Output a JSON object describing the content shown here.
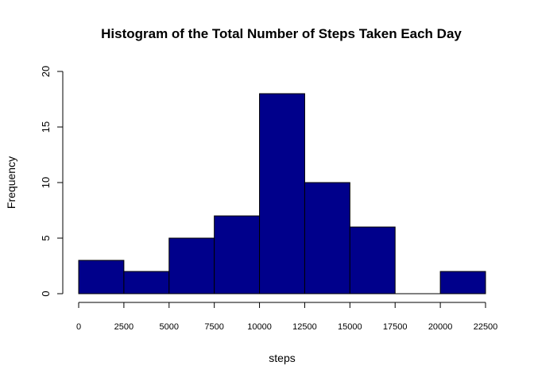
{
  "chart_data": {
    "type": "bar",
    "title": "Histogram of the Total Number of Steps Taken Each Day",
    "xlabel": "steps",
    "ylabel": "Frequency",
    "bins": [
      {
        "start": 0,
        "end": 2500,
        "count": 3
      },
      {
        "start": 2500,
        "end": 5000,
        "count": 2
      },
      {
        "start": 5000,
        "end": 7500,
        "count": 5
      },
      {
        "start": 7500,
        "end": 10000,
        "count": 7
      },
      {
        "start": 10000,
        "end": 12500,
        "count": 18
      },
      {
        "start": 12500,
        "end": 15000,
        "count": 10
      },
      {
        "start": 15000,
        "end": 17500,
        "count": 6
      },
      {
        "start": 17500,
        "end": 20000,
        "count": 0
      },
      {
        "start": 20000,
        "end": 22500,
        "count": 2
      }
    ],
    "xlim": [
      0,
      22500
    ],
    "ylim": [
      0,
      20
    ],
    "x_ticks": [
      "0",
      "2500",
      "5000",
      "7500",
      "10000",
      "12500",
      "15000",
      "17500",
      "20000",
      "22500"
    ],
    "y_ticks": [
      "0",
      "5",
      "10",
      "15",
      "20"
    ],
    "bar_color": "#00008B",
    "grid": false
  }
}
